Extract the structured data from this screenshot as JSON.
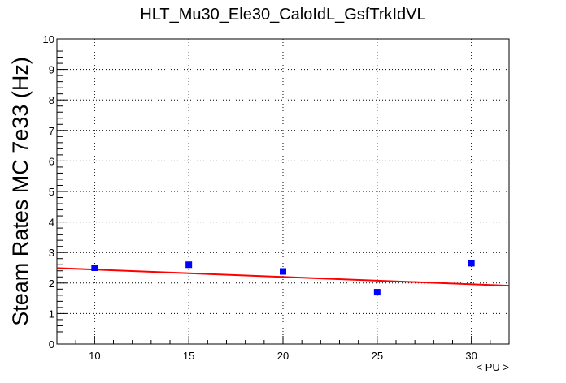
{
  "chart_data": {
    "type": "scatter",
    "title": "HLT_Mu30_Ele30_CaloIdL_GsfTrkIdVL",
    "xlabel": "< PU >",
    "ylabel": "Steam Rates MC 7e33 (Hz)",
    "xlim": [
      8,
      32
    ],
    "ylim": [
      0,
      10
    ],
    "x_ticks": [
      10,
      15,
      20,
      25,
      30
    ],
    "y_ticks": [
      0,
      1,
      2,
      3,
      4,
      5,
      6,
      7,
      8,
      9,
      10
    ],
    "grid": true,
    "points": [
      {
        "x": 10,
        "y": 2.5
      },
      {
        "x": 15,
        "y": 2.6
      },
      {
        "x": 20,
        "y": 2.38
      },
      {
        "x": 25,
        "y": 1.7
      },
      {
        "x": 30,
        "y": 2.65
      }
    ],
    "fit_line": {
      "x": [
        8,
        32
      ],
      "y": [
        2.49,
        1.91
      ]
    },
    "colors": {
      "points": "#0000ff",
      "fit": "#ff0000",
      "grid": "#000000"
    }
  }
}
